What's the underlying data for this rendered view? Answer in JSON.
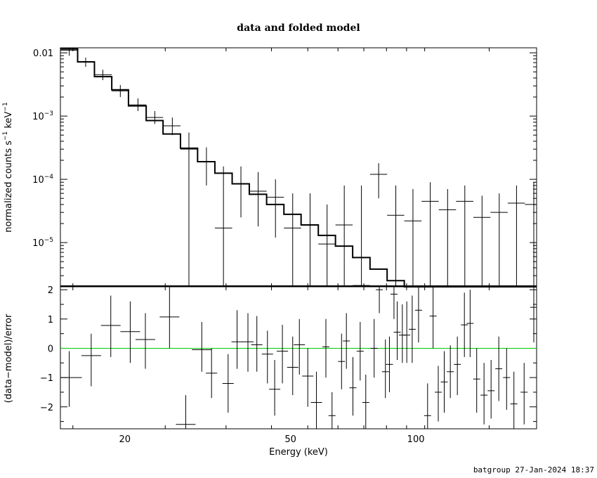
{
  "chart_data": {
    "title": "data and folded model",
    "footer": "batgroup 27-Jan-2024 18:37",
    "xlabel": "Energy (keV)",
    "xscale": "log",
    "xlim": [
      14,
      195
    ],
    "x_ticks": [
      {
        "v": 20,
        "label": "20"
      },
      {
        "v": 50,
        "label": "50"
      },
      {
        "v": 100,
        "label": "100"
      }
    ],
    "top_panel": {
      "type": "step",
      "ylabel_parts": {
        "a": "normalized counts s",
        "sup1": "−1",
        "b": " keV",
        "sup2": "−1"
      },
      "yscale": "log",
      "ylim": [
        2e-06,
        0.012
      ],
      "y_ticks": [
        {
          "v": 0.01,
          "base": "0.01",
          "exp": ""
        },
        {
          "v": 0.001,
          "base": "10",
          "exp": "−3"
        },
        {
          "v": 0.0001,
          "base": "10",
          "exp": "−4"
        },
        {
          "v": 1e-05,
          "base": "10",
          "exp": "−5"
        }
      ],
      "edges": [
        14,
        15.4,
        16.9,
        18.6,
        20.4,
        22.5,
        24.7,
        27.2,
        29.9,
        32.9,
        36.2,
        39.8,
        43.8,
        48.2,
        53.0,
        58.3,
        64.1,
        70.5,
        77.6,
        85.3,
        93.8,
        103.2,
        113.5,
        124.9,
        137.4,
        151.1,
        166.2,
        182.8,
        195
      ],
      "model": [
        0.0115,
        0.0072,
        0.0042,
        0.0026,
        0.00145,
        0.00085,
        0.00052,
        0.00031,
        0.00019,
        0.000125,
        8.5e-05,
        5.8e-05,
        4e-05,
        2.8e-05,
        1.9e-05,
        1.3e-05,
        8.8e-06,
        5.8e-06,
        3.8e-06,
        2.5e-06,
        1.7e-06,
        1.1e-06,
        7e-07,
        5e-07,
        3e-07,
        2e-07,
        1.5e-07,
        1e-07
      ],
      "data_points": [
        {
          "x": 14.7,
          "y": 0.011,
          "lo": 0.009,
          "hi": 0.013
        },
        {
          "x": 16.1,
          "y": 0.0071,
          "lo": 0.006,
          "hi": 0.0084
        },
        {
          "x": 17.7,
          "y": 0.0045,
          "lo": 0.0037,
          "hi": 0.0054
        },
        {
          "x": 19.5,
          "y": 0.0025,
          "lo": 0.002,
          "hi": 0.0031
        },
        {
          "x": 21.5,
          "y": 0.0015,
          "lo": 0.0012,
          "hi": 0.0019
        },
        {
          "x": 23.6,
          "y": 0.00095,
          "lo": 0.00075,
          "hi": 0.0012
        },
        {
          "x": 26.0,
          "y": 0.0007,
          "lo": 0.0005,
          "hi": 0.00095
        },
        {
          "x": 28.5,
          "y": 0.0003,
          "lo": 2.1e-06,
          "hi": 0.00055
        },
        {
          "x": 31.4,
          "y": 0.00019,
          "lo": 8e-05,
          "hi": 0.00032
        },
        {
          "x": 34.5,
          "y": 1.7e-05,
          "lo": 2.1e-06,
          "hi": 0.00016
        },
        {
          "x": 38.0,
          "y": 8.5e-05,
          "lo": 2.5e-05,
          "hi": 0.00016
        },
        {
          "x": 41.8,
          "y": 6.5e-05,
          "lo": 1.8e-05,
          "hi": 0.00013
        },
        {
          "x": 46.0,
          "y": 5.2e-05,
          "lo": 1.2e-05,
          "hi": 0.0001
        },
        {
          "x": 50.6,
          "y": 1.7e-05,
          "lo": 2.1e-06,
          "hi": 6e-05
        },
        {
          "x": 55.7,
          "y": 1.9e-05,
          "lo": 2.1e-06,
          "hi": 6e-05
        },
        {
          "x": 61.2,
          "y": 9.5e-06,
          "lo": 2.1e-06,
          "hi": 4e-05
        },
        {
          "x": 67.3,
          "y": 1.9e-05,
          "lo": 2.1e-06,
          "hi": 8e-05
        },
        {
          "x": 74.0,
          "y": 2.1e-06,
          "lo": 2.1e-06,
          "hi": 8e-05
        },
        {
          "x": 81.4,
          "y": 0.00012,
          "lo": 5e-05,
          "hi": 0.00018
        },
        {
          "x": 89.5,
          "y": 2.7e-05,
          "lo": 2.1e-06,
          "hi": 8e-05
        },
        {
          "x": 98.4,
          "y": 2.2e-05,
          "lo": 2.1e-06,
          "hi": 7e-05
        },
        {
          "x": 108.3,
          "y": 4.5e-05,
          "lo": 2.1e-06,
          "hi": 9e-05
        },
        {
          "x": 119.2,
          "y": 3.3e-05,
          "lo": 2.1e-06,
          "hi": 7e-05
        },
        {
          "x": 131.1,
          "y": 4.5e-05,
          "lo": 2.1e-06,
          "hi": 8e-05
        },
        {
          "x": 144.2,
          "y": 2.5e-05,
          "lo": 2.1e-06,
          "hi": 5.5e-05
        },
        {
          "x": 158.6,
          "y": 3e-05,
          "lo": 2.1e-06,
          "hi": 6e-05
        },
        {
          "x": 174.5,
          "y": 4.2e-05,
          "lo": 2.1e-06,
          "hi": 8e-05
        },
        {
          "x": 192.0,
          "y": 4e-05,
          "lo": 2.1e-06,
          "hi": 9e-05
        }
      ]
    },
    "bottom_panel": {
      "type": "scatter",
      "ylabel": "(data−model)/error",
      "ylim": [
        -2.75,
        2.1
      ],
      "y_ticks": [
        {
          "v": 2,
          "label": "2"
        },
        {
          "v": 1,
          "label": "1"
        },
        {
          "v": 0,
          "label": "0"
        },
        {
          "v": -1,
          "label": "−1"
        },
        {
          "v": -2,
          "label": "−2"
        }
      ],
      "zero_line_color": "#00cc00",
      "points": [
        {
          "x": 14.7,
          "y": -1.0,
          "lo": -2.0,
          "hi": -0.1
        },
        {
          "x": 16.6,
          "y": -0.25,
          "lo": -1.3,
          "hi": 0.5
        },
        {
          "x": 18.5,
          "y": 0.78,
          "lo": -0.3,
          "hi": 1.8
        },
        {
          "x": 20.6,
          "y": 0.57,
          "lo": -0.5,
          "hi": 1.6
        },
        {
          "x": 22.4,
          "y": 0.3,
          "lo": -0.7,
          "hi": 1.2
        },
        {
          "x": 25.6,
          "y": 1.07,
          "lo": 0.0,
          "hi": 2.1
        },
        {
          "x": 28.0,
          "y": -2.6,
          "lo": -2.75,
          "hi": -1.6
        },
        {
          "x": 30.6,
          "y": -0.05,
          "lo": -0.8,
          "hi": 0.9
        },
        {
          "x": 32.3,
          "y": -0.85,
          "lo": -1.7,
          "hi": 0.0
        },
        {
          "x": 35.4,
          "y": -1.2,
          "lo": -2.2,
          "hi": -0.2
        },
        {
          "x": 37.2,
          "y": 0.22,
          "lo": -0.7,
          "hi": 1.3
        },
        {
          "x": 39.5,
          "y": 0.22,
          "lo": -0.8,
          "hi": 1.2
        },
        {
          "x": 41.5,
          "y": 0.12,
          "lo": -0.8,
          "hi": 1.1
        },
        {
          "x": 44.0,
          "y": -0.2,
          "lo": -1.2,
          "hi": 0.6
        },
        {
          "x": 45.8,
          "y": -1.4,
          "lo": -2.3,
          "hi": -0.4
        },
        {
          "x": 47.8,
          "y": -0.1,
          "lo": -1.2,
          "hi": 0.8
        },
        {
          "x": 50.6,
          "y": -0.65,
          "lo": -1.6,
          "hi": 0.4
        },
        {
          "x": 52.5,
          "y": 0.12,
          "lo": -0.9,
          "hi": 1.0
        },
        {
          "x": 55.0,
          "y": -0.95,
          "lo": -2.0,
          "hi": 0.0
        },
        {
          "x": 57.7,
          "y": -1.85,
          "lo": -2.75,
          "hi": -0.8
        },
        {
          "x": 60.8,
          "y": 0.05,
          "lo": -1.0,
          "hi": 1.0
        },
        {
          "x": 62.9,
          "y": -2.3,
          "lo": -2.75,
          "hi": -1.5
        },
        {
          "x": 66.3,
          "y": -0.45,
          "lo": -1.4,
          "hi": 0.5
        },
        {
          "x": 68.1,
          "y": 0.25,
          "lo": -0.7,
          "hi": 1.2
        },
        {
          "x": 70.6,
          "y": -1.35,
          "lo": -2.3,
          "hi": -0.3
        },
        {
          "x": 73.5,
          "y": -0.1,
          "lo": -1.1,
          "hi": 0.9
        },
        {
          "x": 75.8,
          "y": -1.85,
          "lo": -2.75,
          "hi": -0.9
        },
        {
          "x": 79.4,
          "y": 0.0,
          "lo": -1.0,
          "hi": 1.0
        },
        {
          "x": 81.7,
          "y": 2.0,
          "lo": 1.2,
          "hi": 2.1
        },
        {
          "x": 84.5,
          "y": -0.8,
          "lo": -1.7,
          "hi": 0.3
        },
        {
          "x": 86.4,
          "y": -0.55,
          "lo": -1.5,
          "hi": 0.4
        },
        {
          "x": 88.6,
          "y": 1.85,
          "lo": 1.0,
          "hi": 2.1
        },
        {
          "x": 90.2,
          "y": 0.55,
          "lo": -0.4,
          "hi": 1.6
        },
        {
          "x": 92.8,
          "y": 0.45,
          "lo": -0.5,
          "hi": 1.5
        },
        {
          "x": 95.1,
          "y": 0.45,
          "lo": -0.5,
          "hi": 1.6
        },
        {
          "x": 98.0,
          "y": 0.65,
          "lo": -0.5,
          "hi": 1.8
        },
        {
          "x": 101.5,
          "y": 1.3,
          "lo": 0.2,
          "hi": 2.1
        },
        {
          "x": 106.7,
          "y": -2.3,
          "lo": -2.75,
          "hi": -1.2
        },
        {
          "x": 110.0,
          "y": 1.1,
          "lo": 0.0,
          "hi": 2.1
        },
        {
          "x": 113.2,
          "y": -1.5,
          "lo": -2.5,
          "hi": -0.6
        },
        {
          "x": 117.0,
          "y": -1.15,
          "lo": -2.2,
          "hi": -0.1
        },
        {
          "x": 121.0,
          "y": -0.8,
          "lo": -1.7,
          "hi": 0.1
        },
        {
          "x": 125.8,
          "y": -0.55,
          "lo": -1.6,
          "hi": 0.4
        },
        {
          "x": 130.8,
          "y": 0.8,
          "lo": -0.3,
          "hi": 1.9
        },
        {
          "x": 135.0,
          "y": 0.85,
          "lo": -0.3,
          "hi": 2.0
        },
        {
          "x": 140.0,
          "y": -1.05,
          "lo": -2.2,
          "hi": 0.0
        },
        {
          "x": 145.8,
          "y": -1.6,
          "lo": -2.6,
          "hi": -0.5
        },
        {
          "x": 151.6,
          "y": -1.45,
          "lo": -2.4,
          "hi": -0.4
        },
        {
          "x": 158.2,
          "y": -0.7,
          "lo": -1.8,
          "hi": 0.4
        },
        {
          "x": 165.2,
          "y": -1.0,
          "lo": -2.1,
          "hi": 0.0
        },
        {
          "x": 172.0,
          "y": -1.9,
          "lo": -2.75,
          "hi": -0.8
        },
        {
          "x": 182.0,
          "y": -1.5,
          "lo": -2.6,
          "hi": -0.5
        },
        {
          "x": 192.0,
          "y": 1.4,
          "lo": 0.2,
          "hi": 2.1
        }
      ]
    }
  }
}
